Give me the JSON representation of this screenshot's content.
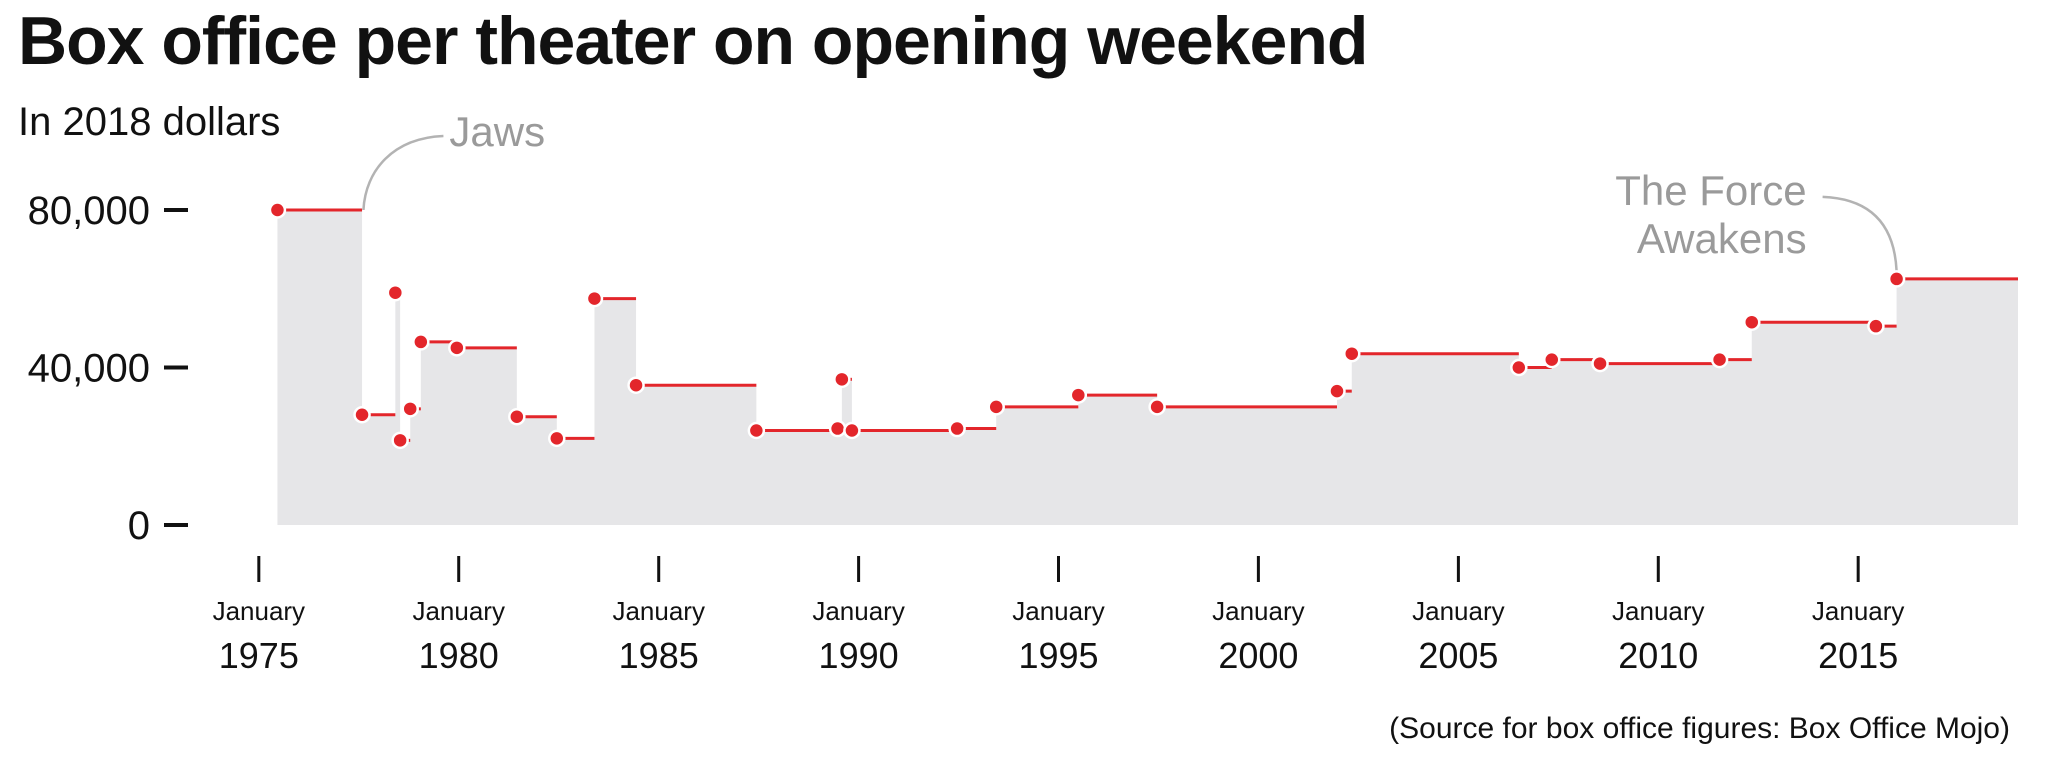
{
  "chart_data": {
    "type": "area",
    "step": true,
    "title": "Box office per theater on opening weekend",
    "subtitle": "In 2018 dollars",
    "source": "(Source for box office figures: Box Office Mojo)",
    "xlabel": "",
    "ylabel": "",
    "x_domain": [
      "1974-05-01",
      "2018-12-31"
    ],
    "ylim": [
      0,
      80000
    ],
    "y_ticks": [
      0,
      40000,
      80000
    ],
    "y_tick_labels": [
      "0",
      "40,000",
      "80,000"
    ],
    "x_ticks": [
      "1975-01-01",
      "1980-01-01",
      "1985-01-01",
      "1990-01-01",
      "1995-01-01",
      "2000-01-01",
      "2005-01-01",
      "2010-01-01",
      "2015-01-01"
    ],
    "x_tick_months": [
      "January",
      "January",
      "January",
      "January",
      "January",
      "January",
      "January",
      "January",
      "January"
    ],
    "x_tick_years": [
      "1975",
      "1980",
      "1985",
      "1990",
      "1995",
      "2000",
      "2005",
      "2010",
      "2015"
    ],
    "grid": false,
    "points": [
      {
        "x": "1975-06-20",
        "y": 80000
      },
      {
        "x": "1977-08-01",
        "y": 28000
      },
      {
        "x": "1978-06-01",
        "y": 59000
      },
      {
        "x": "1978-07-15",
        "y": 21500
      },
      {
        "x": "1978-10-15",
        "y": 29500
      },
      {
        "x": "1979-01-20",
        "y": 46500
      },
      {
        "x": "1979-12-15",
        "y": 45000
      },
      {
        "x": "1981-06-15",
        "y": 27500
      },
      {
        "x": "1982-06-15",
        "y": 22000
      },
      {
        "x": "1983-05-25",
        "y": 57500
      },
      {
        "x": "1984-06-08",
        "y": 35500
      },
      {
        "x": "1987-06-12",
        "y": 24000
      },
      {
        "x": "1989-06-23",
        "y": 24500
      },
      {
        "x": "1989-08-01",
        "y": 37000
      },
      {
        "x": "1989-11-01",
        "y": 24000
      },
      {
        "x": "1992-06-19",
        "y": 24500
      },
      {
        "x": "1993-06-11",
        "y": 30000
      },
      {
        "x": "1995-07-01",
        "y": 33000
      },
      {
        "x": "1997-06-20",
        "y": 30000
      },
      {
        "x": "2001-12-19",
        "y": 34000
      },
      {
        "x": "2002-05-03",
        "y": 43500
      },
      {
        "x": "2006-07-07",
        "y": 40000
      },
      {
        "x": "2007-05-04",
        "y": 42000
      },
      {
        "x": "2008-07-18",
        "y": 41000
      },
      {
        "x": "2011-07-15",
        "y": 42000
      },
      {
        "x": "2012-05-04",
        "y": 51500
      },
      {
        "x": "2015-06-12",
        "y": 50500
      },
      {
        "x": "2015-12-18",
        "y": 62500
      }
    ],
    "colors": {
      "line": "#e3262b",
      "area": "#e6e6e8",
      "annotation": "#9a9a9a",
      "text": "#111111"
    },
    "annotations": [
      {
        "text": "Jaws",
        "x": "1975-06-20",
        "y": 80000
      },
      {
        "lines": [
          "The Force",
          "Awakens"
        ],
        "x": "2015-12-18",
        "y": 62500
      }
    ]
  }
}
